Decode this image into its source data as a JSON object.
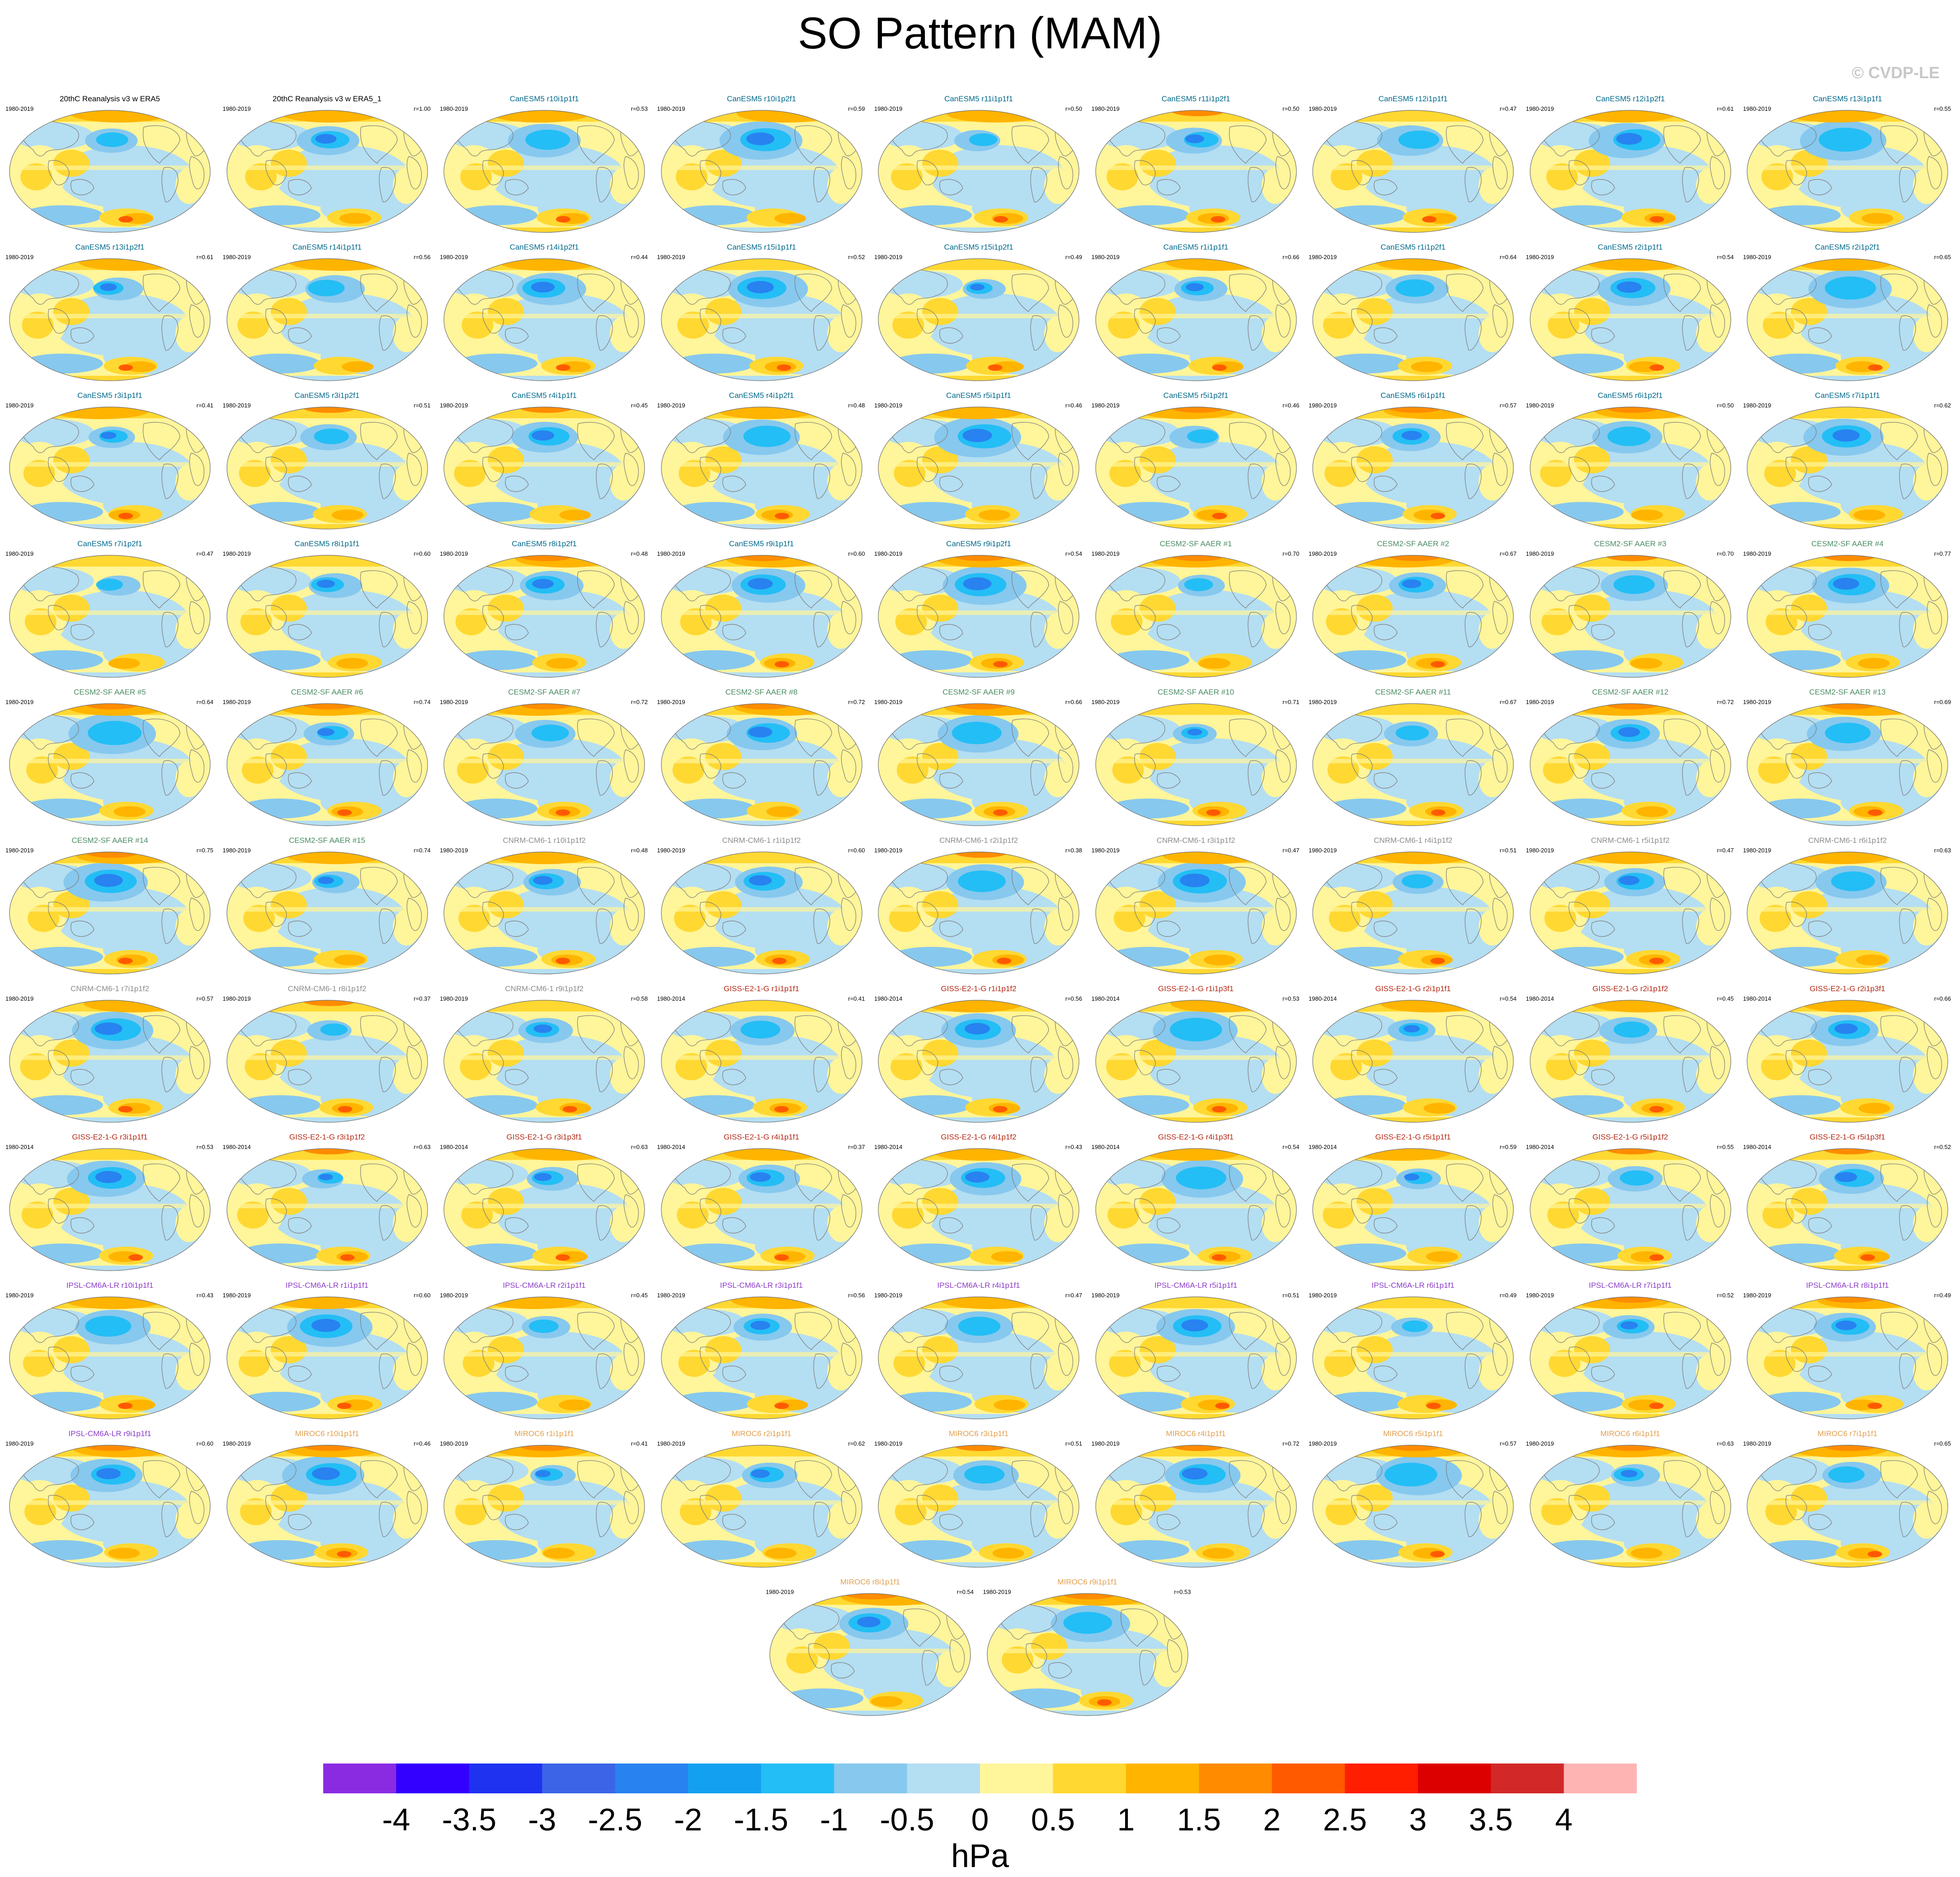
{
  "title": "SO Pattern (MAM)",
  "watermark": "© CVDP-LE",
  "chart_data": {
    "type": "heatmap",
    "projection": "robinson-world-maps",
    "colorbar": {
      "label": "hPa",
      "tick_labels": [
        "-4",
        "-3.5",
        "-3",
        "-2.5",
        "-2",
        "-1.5",
        "-1",
        "-0.5",
        "0",
        "0.5",
        "1",
        "1.5",
        "2",
        "2.5",
        "3",
        "3.5",
        "4"
      ],
      "colors": [
        "#8a2be2",
        "#3300ff",
        "#1e32f0",
        "#3c64e6",
        "#2882f0",
        "#14a0f0",
        "#23bef5",
        "#87c8ee",
        "#b4def2",
        "#fff59a",
        "#ffd832",
        "#ffb400",
        "#ff8c00",
        "#ff5a00",
        "#ff1e00",
        "#dc0000",
        "#d22828",
        "#ffb4b4"
      ]
    },
    "groups": {
      "obs": "#000000",
      "CanESM5": "#00698c",
      "CESM2-SF AAER": "#4b8c64",
      "CNRM-CM6-1": "#8c8c8c",
      "GISS-E2-1-G": "#b42814",
      "IPSL-CM6A-LR": "#8c3cc8",
      "MIROC6": "#e0a050"
    },
    "panels": [
      {
        "title": "20thC Reanalysis v3 w ERA5",
        "group": "obs",
        "years": "1980-2019",
        "r": ""
      },
      {
        "title": "20thC Reanalysis v3 w ERA5_1",
        "group": "obs",
        "years": "1980-2019",
        "r": "r=1.00"
      },
      {
        "title": "CanESM5 r10i1p1f1",
        "group": "CanESM5",
        "years": "1980-2019",
        "r": "r=0.53"
      },
      {
        "title": "CanESM5 r10i1p2f1",
        "group": "CanESM5",
        "years": "1980-2019",
        "r": "r=0.59"
      },
      {
        "title": "CanESM5 r11i1p1f1",
        "group": "CanESM5",
        "years": "1980-2019",
        "r": "r=0.50"
      },
      {
        "title": "CanESM5 r11i1p2f1",
        "group": "CanESM5",
        "years": "1980-2019",
        "r": "r=0.50"
      },
      {
        "title": "CanESM5 r12i1p1f1",
        "group": "CanESM5",
        "years": "1980-2019",
        "r": "r=0.47"
      },
      {
        "title": "CanESM5 r12i1p2f1",
        "group": "CanESM5",
        "years": "1980-2019",
        "r": "r=0.61"
      },
      {
        "title": "CanESM5 r13i1p1f1",
        "group": "CanESM5",
        "years": "1980-2019",
        "r": "r=0.55"
      },
      {
        "title": "CanESM5 r13i1p2f1",
        "group": "CanESM5",
        "years": "1980-2019",
        "r": "r=0.61"
      },
      {
        "title": "CanESM5 r14i1p1f1",
        "group": "CanESM5",
        "years": "1980-2019",
        "r": "r=0.56"
      },
      {
        "title": "CanESM5 r14i1p2f1",
        "group": "CanESM5",
        "years": "1980-2019",
        "r": "r=0.44"
      },
      {
        "title": "CanESM5 r15i1p1f1",
        "group": "CanESM5",
        "years": "1980-2019",
        "r": "r=0.52"
      },
      {
        "title": "CanESM5 r15i1p2f1",
        "group": "CanESM5",
        "years": "1980-2019",
        "r": "r=0.49"
      },
      {
        "title": "CanESM5 r1i1p1f1",
        "group": "CanESM5",
        "years": "1980-2019",
        "r": "r=0.66"
      },
      {
        "title": "CanESM5 r1i1p2f1",
        "group": "CanESM5",
        "years": "1980-2019",
        "r": "r=0.64"
      },
      {
        "title": "CanESM5 r2i1p1f1",
        "group": "CanESM5",
        "years": "1980-2019",
        "r": "r=0.54"
      },
      {
        "title": "CanESM5 r2i1p2f1",
        "group": "CanESM5",
        "years": "1980-2019",
        "r": "r=0.65"
      },
      {
        "title": "CanESM5 r3i1p1f1",
        "group": "CanESM5",
        "years": "1980-2019",
        "r": "r=0.41"
      },
      {
        "title": "CanESM5 r3i1p2f1",
        "group": "CanESM5",
        "years": "1980-2019",
        "r": "r=0.51"
      },
      {
        "title": "CanESM5 r4i1p1f1",
        "group": "CanESM5",
        "years": "1980-2019",
        "r": "r=0.45"
      },
      {
        "title": "CanESM5 r4i1p2f1",
        "group": "CanESM5",
        "years": "1980-2019",
        "r": "r=0.48"
      },
      {
        "title": "CanESM5 r5i1p1f1",
        "group": "CanESM5",
        "years": "1980-2019",
        "r": "r=0.46"
      },
      {
        "title": "CanESM5 r5i1p2f1",
        "group": "CanESM5",
        "years": "1980-2019",
        "r": "r=0.46"
      },
      {
        "title": "CanESM5 r6i1p1f1",
        "group": "CanESM5",
        "years": "1980-2019",
        "r": "r=0.57"
      },
      {
        "title": "CanESM5 r6i1p2f1",
        "group": "CanESM5",
        "years": "1980-2019",
        "r": "r=0.50"
      },
      {
        "title": "CanESM5 r7i1p1f1",
        "group": "CanESM5",
        "years": "1980-2019",
        "r": "r=0.62"
      },
      {
        "title": "CanESM5 r7i1p2f1",
        "group": "CanESM5",
        "years": "1980-2019",
        "r": "r=0.47"
      },
      {
        "title": "CanESM5 r8i1p1f1",
        "group": "CanESM5",
        "years": "1980-2019",
        "r": "r=0.60"
      },
      {
        "title": "CanESM5 r8i1p2f1",
        "group": "CanESM5",
        "years": "1980-2019",
        "r": "r=0.48"
      },
      {
        "title": "CanESM5 r9i1p1f1",
        "group": "CanESM5",
        "years": "1980-2019",
        "r": "r=0.60"
      },
      {
        "title": "CanESM5 r9i1p2f1",
        "group": "CanESM5",
        "years": "1980-2019",
        "r": "r=0.54"
      },
      {
        "title": "CESM2-SF AAER #1",
        "group": "CESM2-SF AAER",
        "years": "1980-2019",
        "r": "r=0.70"
      },
      {
        "title": "CESM2-SF AAER #2",
        "group": "CESM2-SF AAER",
        "years": "1980-2019",
        "r": "r=0.67"
      },
      {
        "title": "CESM2-SF AAER #3",
        "group": "CESM2-SF AAER",
        "years": "1980-2019",
        "r": "r=0.70"
      },
      {
        "title": "CESM2-SF AAER #4",
        "group": "CESM2-SF AAER",
        "years": "1980-2019",
        "r": "r=0.77"
      },
      {
        "title": "CESM2-SF AAER #5",
        "group": "CESM2-SF AAER",
        "years": "1980-2019",
        "r": "r=0.64"
      },
      {
        "title": "CESM2-SF AAER #6",
        "group": "CESM2-SF AAER",
        "years": "1980-2019",
        "r": "r=0.74"
      },
      {
        "title": "CESM2-SF AAER #7",
        "group": "CESM2-SF AAER",
        "years": "1980-2019",
        "r": "r=0.72"
      },
      {
        "title": "CESM2-SF AAER #8",
        "group": "CESM2-SF AAER",
        "years": "1980-2019",
        "r": "r=0.72"
      },
      {
        "title": "CESM2-SF AAER #9",
        "group": "CESM2-SF AAER",
        "years": "1980-2019",
        "r": "r=0.66"
      },
      {
        "title": "CESM2-SF AAER #10",
        "group": "CESM2-SF AAER",
        "years": "1980-2019",
        "r": "r=0.71"
      },
      {
        "title": "CESM2-SF AAER #11",
        "group": "CESM2-SF AAER",
        "years": "1980-2019",
        "r": "r=0.67"
      },
      {
        "title": "CESM2-SF AAER #12",
        "group": "CESM2-SF AAER",
        "years": "1980-2019",
        "r": "r=0.72"
      },
      {
        "title": "CESM2-SF AAER #13",
        "group": "CESM2-SF AAER",
        "years": "1980-2019",
        "r": "r=0.69"
      },
      {
        "title": "CESM2-SF AAER #14",
        "group": "CESM2-SF AAER",
        "years": "1980-2019",
        "r": "r=0.75"
      },
      {
        "title": "CESM2-SF AAER #15",
        "group": "CESM2-SF AAER",
        "years": "1980-2019",
        "r": "r=0.74"
      },
      {
        "title": "CNRM-CM6-1 r10i1p1f2",
        "group": "CNRM-CM6-1",
        "years": "1980-2019",
        "r": "r=0.48"
      },
      {
        "title": "CNRM-CM6-1 r1i1p1f2",
        "group": "CNRM-CM6-1",
        "years": "1980-2019",
        "r": "r=0.60"
      },
      {
        "title": "CNRM-CM6-1 r2i1p1f2",
        "group": "CNRM-CM6-1",
        "years": "1980-2019",
        "r": "r=0.38"
      },
      {
        "title": "CNRM-CM6-1 r3i1p1f2",
        "group": "CNRM-CM6-1",
        "years": "1980-2019",
        "r": "r=0.47"
      },
      {
        "title": "CNRM-CM6-1 r4i1p1f2",
        "group": "CNRM-CM6-1",
        "years": "1980-2019",
        "r": "r=0.51"
      },
      {
        "title": "CNRM-CM6-1 r5i1p1f2",
        "group": "CNRM-CM6-1",
        "years": "1980-2019",
        "r": "r=0.47"
      },
      {
        "title": "CNRM-CM6-1 r6i1p1f2",
        "group": "CNRM-CM6-1",
        "years": "1980-2019",
        "r": "r=0.63"
      },
      {
        "title": "CNRM-CM6-1 r7i1p1f2",
        "group": "CNRM-CM6-1",
        "years": "1980-2019",
        "r": "r=0.57"
      },
      {
        "title": "CNRM-CM6-1 r8i1p1f2",
        "group": "CNRM-CM6-1",
        "years": "1980-2019",
        "r": "r=0.37"
      },
      {
        "title": "CNRM-CM6-1 r9i1p1f2",
        "group": "CNRM-CM6-1",
        "years": "1980-2019",
        "r": "r=0.58"
      },
      {
        "title": "GISS-E2-1-G r1i1p1f1",
        "group": "GISS-E2-1-G",
        "years": "1980-2014",
        "r": "r=0.41"
      },
      {
        "title": "GISS-E2-1-G r1i1p1f2",
        "group": "GISS-E2-1-G",
        "years": "1980-2014",
        "r": "r=0.56"
      },
      {
        "title": "GISS-E2-1-G r1i1p3f1",
        "group": "GISS-E2-1-G",
        "years": "1980-2014",
        "r": "r=0.53"
      },
      {
        "title": "GISS-E2-1-G r2i1p1f1",
        "group": "GISS-E2-1-G",
        "years": "1980-2014",
        "r": "r=0.54"
      },
      {
        "title": "GISS-E2-1-G r2i1p1f2",
        "group": "GISS-E2-1-G",
        "years": "1980-2014",
        "r": "r=0.45"
      },
      {
        "title": "GISS-E2-1-G r2i1p3f1",
        "group": "GISS-E2-1-G",
        "years": "1980-2014",
        "r": "r=0.66"
      },
      {
        "title": "GISS-E2-1-G r3i1p1f1",
        "group": "GISS-E2-1-G",
        "years": "1980-2014",
        "r": "r=0.53"
      },
      {
        "title": "GISS-E2-1-G r3i1p1f2",
        "group": "GISS-E2-1-G",
        "years": "1980-2014",
        "r": "r=0.63"
      },
      {
        "title": "GISS-E2-1-G r3i1p3f1",
        "group": "GISS-E2-1-G",
        "years": "1980-2014",
        "r": "r=0.63"
      },
      {
        "title": "GISS-E2-1-G r4i1p1f1",
        "group": "GISS-E2-1-G",
        "years": "1980-2014",
        "r": "r=0.37"
      },
      {
        "title": "GISS-E2-1-G r4i1p1f2",
        "group": "GISS-E2-1-G",
        "years": "1980-2014",
        "r": "r=0.43"
      },
      {
        "title": "GISS-E2-1-G r4i1p3f1",
        "group": "GISS-E2-1-G",
        "years": "1980-2014",
        "r": "r=0.54"
      },
      {
        "title": "GISS-E2-1-G r5i1p1f1",
        "group": "GISS-E2-1-G",
        "years": "1980-2014",
        "r": "r=0.59"
      },
      {
        "title": "GISS-E2-1-G r5i1p1f2",
        "group": "GISS-E2-1-G",
        "years": "1980-2014",
        "r": "r=0.55"
      },
      {
        "title": "GISS-E2-1-G r5i1p3f1",
        "group": "GISS-E2-1-G",
        "years": "1980-2014",
        "r": "r=0.52"
      },
      {
        "title": "IPSL-CM6A-LR r10i1p1f1",
        "group": "IPSL-CM6A-LR",
        "years": "1980-2019",
        "r": "r=0.43"
      },
      {
        "title": "IPSL-CM6A-LR r1i1p1f1",
        "group": "IPSL-CM6A-LR",
        "years": "1980-2019",
        "r": "r=0.60"
      },
      {
        "title": "IPSL-CM6A-LR r2i1p1f1",
        "group": "IPSL-CM6A-LR",
        "years": "1980-2019",
        "r": "r=0.45"
      },
      {
        "title": "IPSL-CM6A-LR r3i1p1f1",
        "group": "IPSL-CM6A-LR",
        "years": "1980-2019",
        "r": "r=0.56"
      },
      {
        "title": "IPSL-CM6A-LR r4i1p1f1",
        "group": "IPSL-CM6A-LR",
        "years": "1980-2019",
        "r": "r=0.47"
      },
      {
        "title": "IPSL-CM6A-LR r5i1p1f1",
        "group": "IPSL-CM6A-LR",
        "years": "1980-2019",
        "r": "r=0.51"
      },
      {
        "title": "IPSL-CM6A-LR r6i1p1f1",
        "group": "IPSL-CM6A-LR",
        "years": "1980-2019",
        "r": "r=0.49"
      },
      {
        "title": "IPSL-CM6A-LR r7i1p1f1",
        "group": "IPSL-CM6A-LR",
        "years": "1980-2019",
        "r": "r=0.52"
      },
      {
        "title": "IPSL-CM6A-LR r8i1p1f1",
        "group": "IPSL-CM6A-LR",
        "years": "1980-2019",
        "r": "r=0.49"
      },
      {
        "title": "IPSL-CM6A-LR r9i1p1f1",
        "group": "IPSL-CM6A-LR",
        "years": "1980-2019",
        "r": "r=0.60"
      },
      {
        "title": "MIROC6 r10i1p1f1",
        "group": "MIROC6",
        "years": "1980-2019",
        "r": "r=0.46"
      },
      {
        "title": "MIROC6 r1i1p1f1",
        "group": "MIROC6",
        "years": "1980-2019",
        "r": "r=0.41"
      },
      {
        "title": "MIROC6 r2i1p1f1",
        "group": "MIROC6",
        "years": "1980-2019",
        "r": "r=0.62"
      },
      {
        "title": "MIROC6 r3i1p1f1",
        "group": "MIROC6",
        "years": "1980-2019",
        "r": "r=0.51"
      },
      {
        "title": "MIROC6 r4i1p1f1",
        "group": "MIROC6",
        "years": "1980-2019",
        "r": "r=0.72"
      },
      {
        "title": "MIROC6 r5i1p1f1",
        "group": "MIROC6",
        "years": "1980-2019",
        "r": "r=0.57"
      },
      {
        "title": "MIROC6 r6i1p1f1",
        "group": "MIROC6",
        "years": "1980-2019",
        "r": "r=0.63"
      },
      {
        "title": "MIROC6 r7i1p1f1",
        "group": "MIROC6",
        "years": "1980-2019",
        "r": "r=0.65"
      },
      {
        "title": "MIROC6 r8i1p1f1",
        "group": "MIROC6",
        "years": "1980-2019",
        "r": "r=0.54"
      },
      {
        "title": "MIROC6 r9i1p1f1",
        "group": "MIROC6",
        "years": "1980-2019",
        "r": "r=0.53"
      }
    ]
  }
}
